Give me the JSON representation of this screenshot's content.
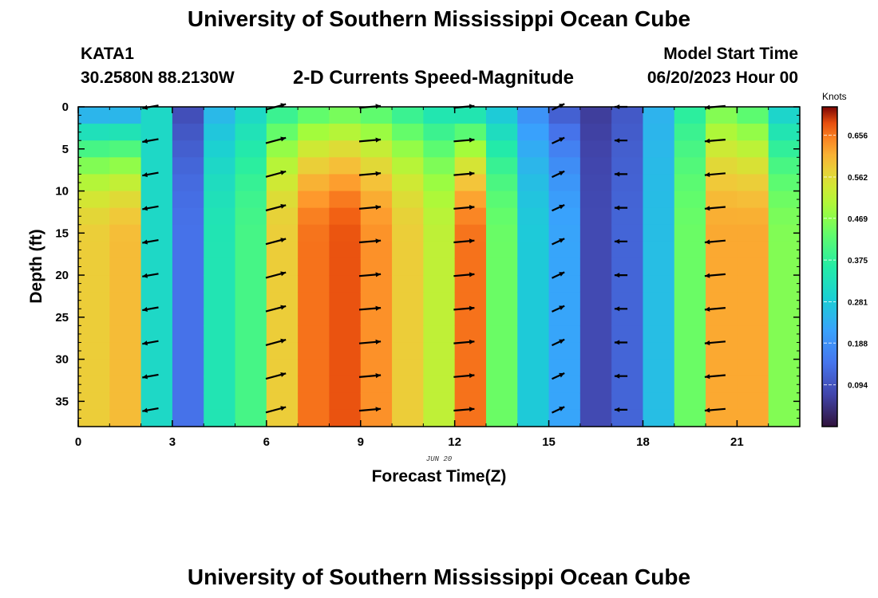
{
  "header": {
    "title": "University of Southern Mississippi Ocean Cube",
    "station_id": "KATA1",
    "coordinates": "30.2580N  88.2130W",
    "plot_title": "2-D Currents Speed-Magnitude",
    "model_start_label": "Model Start Time",
    "model_start_value": "06/20/2023 Hour 00"
  },
  "footer": {
    "title": "University of Southern Mississippi Ocean Cube"
  },
  "chart_data": {
    "type": "heatmap",
    "xlabel": "Forecast Time(Z)",
    "ylabel": "Depth (ft)",
    "date_label": "JUN 20",
    "x_ticks": [
      0,
      3,
      6,
      9,
      12,
      15,
      18,
      21
    ],
    "y_ticks": [
      0,
      5,
      10,
      15,
      20,
      25,
      30,
      35
    ],
    "xlim": [
      0,
      23
    ],
    "ylim": [
      0,
      38
    ],
    "colorbar": {
      "label": "Knots",
      "ticks": [
        "0.656",
        "0.562",
        "0.469",
        "0.375",
        "0.281",
        "0.188",
        "0.094"
      ],
      "range": [
        0.0,
        0.72
      ],
      "colormap": "turbo"
    },
    "hours": [
      0.5,
      1.5,
      2.5,
      3.5,
      4.5,
      5.5,
      6.5,
      7.5,
      8.5,
      9.5,
      10.5,
      11.5,
      12.5,
      13.5,
      14.5,
      15.5,
      16.5,
      17.5,
      18.5,
      19.5,
      20.5,
      21.5,
      22.5
    ],
    "depths_ft": [
      1,
      3,
      5,
      7,
      9,
      11,
      13,
      15,
      17,
      19,
      21,
      23,
      25,
      27,
      29,
      31,
      33,
      35,
      37
    ],
    "speed_profiles_knots": [
      {
        "hour": 0.5,
        "surface": 0.2,
        "deep": 0.58
      },
      {
        "hour": 1.5,
        "surface": 0.2,
        "deep": 0.6
      },
      {
        "hour": 2.5,
        "surface": 0.31,
        "deep": 0.31
      },
      {
        "hour": 3.5,
        "surface": 0.08,
        "deep": 0.14
      },
      {
        "hour": 4.5,
        "surface": 0.24,
        "deep": 0.34
      },
      {
        "hour": 5.5,
        "surface": 0.3,
        "deep": 0.4
      },
      {
        "hour": 6.5,
        "surface": 0.36,
        "deep": 0.58
      },
      {
        "hour": 7.5,
        "surface": 0.4,
        "deep": 0.66
      },
      {
        "hour": 8.5,
        "surface": 0.42,
        "deep": 0.68
      },
      {
        "hour": 9.5,
        "surface": 0.4,
        "deep": 0.64
      },
      {
        "hour": 10.5,
        "surface": 0.36,
        "deep": 0.58
      },
      {
        "hour": 11.5,
        "surface": 0.32,
        "deep": 0.52
      },
      {
        "hour": 12.5,
        "surface": 0.3,
        "deep": 0.66
      },
      {
        "hour": 13.5,
        "surface": 0.26,
        "deep": 0.44
      },
      {
        "hour": 14.5,
        "surface": 0.18,
        "deep": 0.28
      },
      {
        "hour": 15.5,
        "surface": 0.1,
        "deep": 0.22
      },
      {
        "hour": 16.5,
        "surface": 0.06,
        "deep": 0.08
      },
      {
        "hour": 17.5,
        "surface": 0.1,
        "deep": 0.12
      },
      {
        "hour": 18.5,
        "surface": 0.24,
        "deep": 0.26
      },
      {
        "hour": 19.5,
        "surface": 0.36,
        "deep": 0.44
      },
      {
        "hour": 20.5,
        "surface": 0.44,
        "deep": 0.62
      },
      {
        "hour": 21.5,
        "surface": 0.4,
        "deep": 0.62
      },
      {
        "hour": 22.5,
        "surface": 0.28,
        "deep": 0.46
      }
    ],
    "vector_hours": [
      2.3,
      6.3,
      9.3,
      12.3,
      15.3,
      17.3,
      20.3
    ],
    "vector_depths_ft": [
      0,
      4,
      8,
      12,
      16,
      20,
      24,
      28,
      32,
      36
    ],
    "vector_directions_deg": [
      190,
      15,
      5,
      5,
      25,
      180,
      185
    ],
    "vector_magnitudes_knots": [
      0.3,
      0.55,
      0.6,
      0.55,
      0.15,
      0.1,
      0.55
    ]
  }
}
